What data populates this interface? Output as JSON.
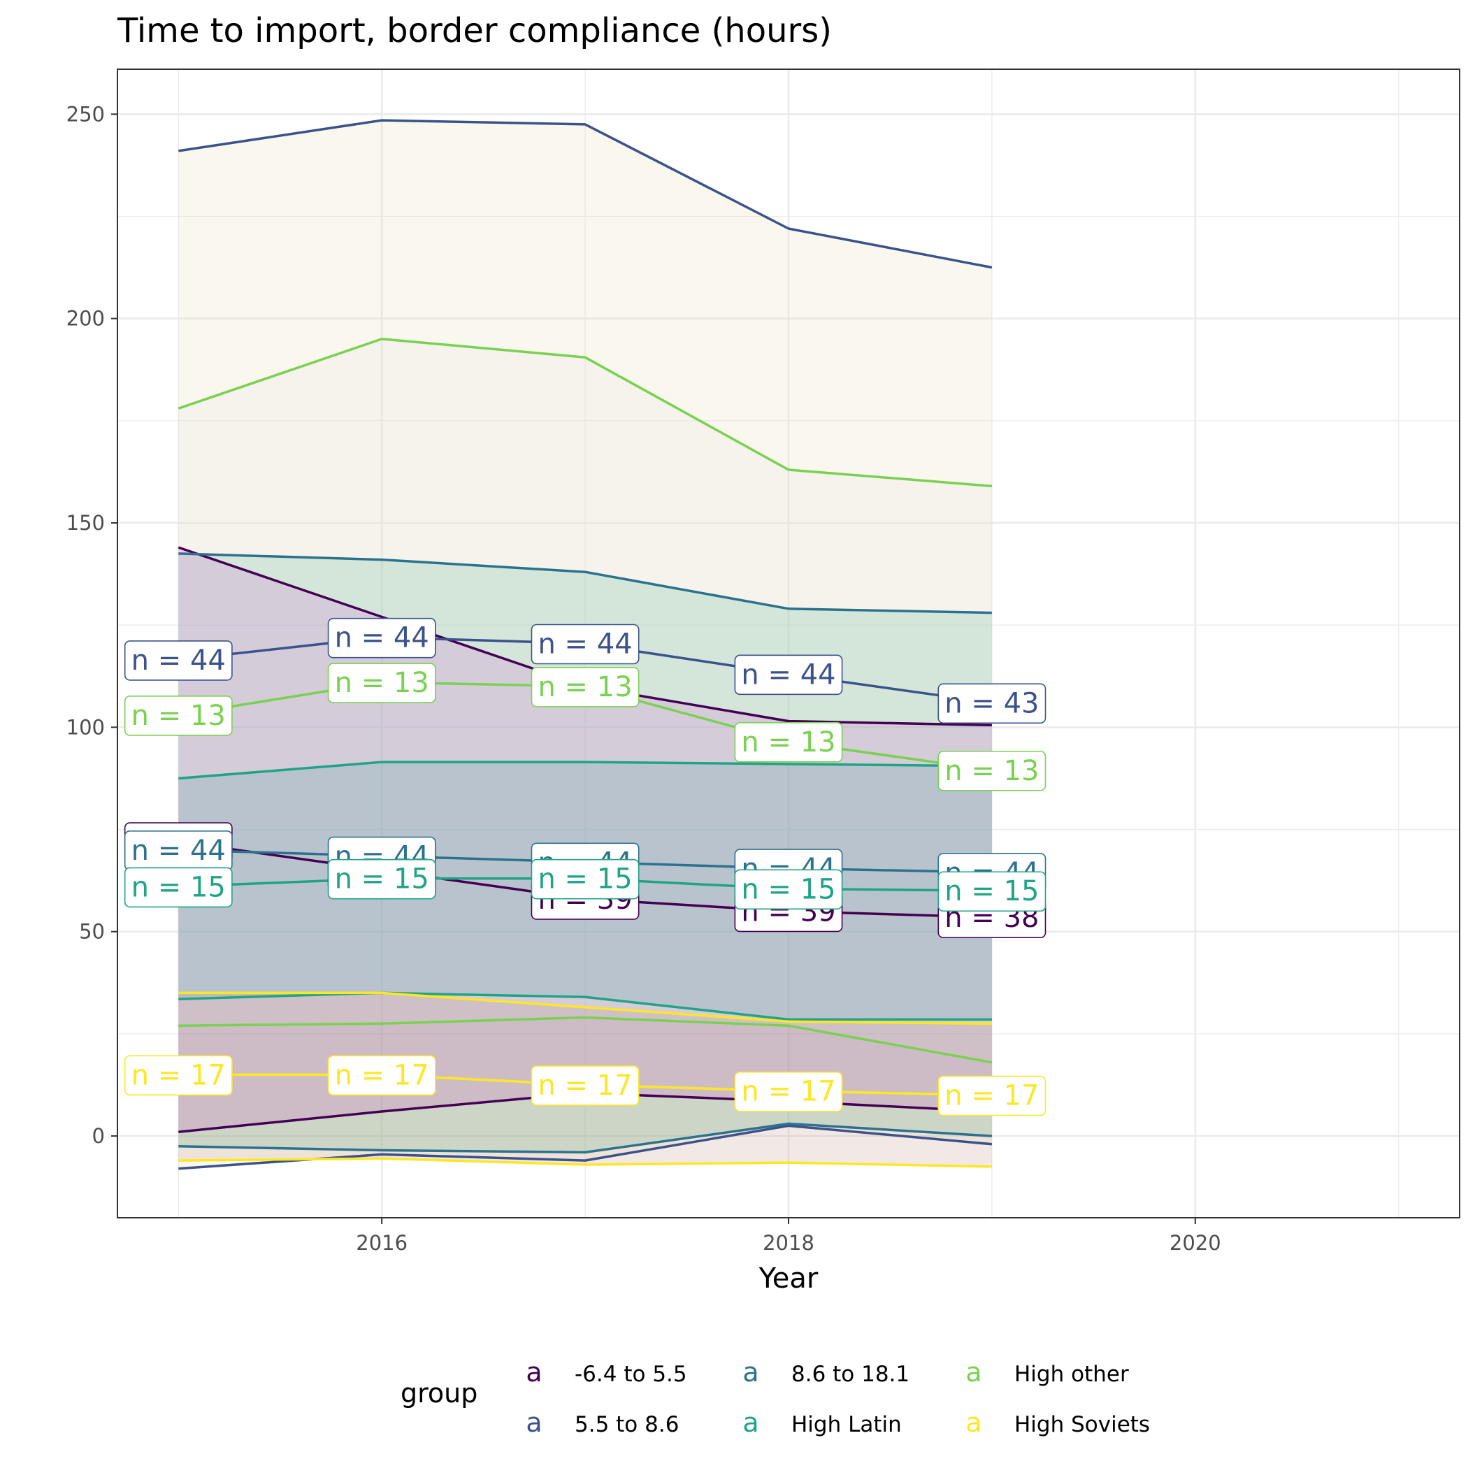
{
  "chart_data": {
    "type": "line",
    "title": "Time to import, border compliance (hours)",
    "xlabel": "Year",
    "ylabel": "",
    "xlim": [
      2014.7,
      2021.3
    ],
    "ylim": [
      -20,
      261
    ],
    "x_ticks": [
      2016,
      2018,
      2020
    ],
    "y_ticks": [
      0,
      50,
      100,
      150,
      200,
      250
    ],
    "grid": true,
    "legend": {
      "title": "group",
      "position": "bottom",
      "key_glyph": "a",
      "entries": [
        "-6.4 to 5.5",
        "5.5 to 8.6",
        "8.6 to 18.1",
        "High Latin",
        "High other",
        "High Soviets"
      ]
    },
    "x": [
      2015,
      2016,
      2017,
      2018,
      2019
    ],
    "series": [
      {
        "name": "-6.4 to 5.5",
        "color": "#440154",
        "ribbon_fill": "#ff00ff",
        "upper": [
          144,
          127,
          110,
          101.5,
          100.5
        ],
        "mean": [
          72,
          65,
          58,
          55,
          53.5
        ],
        "lower": [
          1,
          6,
          10.5,
          8.5,
          6
        ],
        "n_labels": [
          "n = 38",
          "n = 39",
          "n = 39",
          "n = 39",
          "n = 38"
        ]
      },
      {
        "name": "5.5 to 8.6",
        "color": "#3b528b",
        "ribbon_fill": "#e8dcaa",
        "upper": [
          241,
          248.5,
          247.5,
          222,
          212.5
        ],
        "mean": [
          116.5,
          122,
          120.5,
          113,
          106
        ],
        "lower": [
          -8,
          -4.5,
          -6,
          2.5,
          -2
        ],
        "n_labels": [
          "n = 44",
          "n = 44",
          "n = 44",
          "n = 44",
          "n = 43"
        ]
      },
      {
        "name": "8.6 to 18.1",
        "color": "#2c728e",
        "ribbon_fill": "#2ca87e",
        "upper": [
          142.5,
          141,
          138,
          129,
          128
        ],
        "mean": [
          70,
          68.5,
          67,
          65.5,
          64.5
        ],
        "lower": [
          -2.5,
          -3.5,
          -4,
          3,
          0
        ],
        "n_labels": [
          "n = 44",
          "n = 44",
          "n = 44",
          "n = 44",
          "n = 44"
        ]
      },
      {
        "name": "High Latin",
        "color": "#21a386",
        "ribbon_fill": "#21908c",
        "upper": [
          87.5,
          91.5,
          91.5,
          91,
          90.5
        ],
        "mean": [
          61,
          63,
          63,
          60.5,
          60
        ],
        "lower": [
          33.5,
          35,
          34,
          28.5,
          28.5
        ],
        "n_labels": [
          "n = 15",
          "n = 15",
          "n = 15",
          "n = 15",
          "n = 15"
        ]
      },
      {
        "name": "High other",
        "color": "#7ad151",
        "ribbon_fill": "#dfe2e2",
        "upper": [
          178,
          195,
          190.5,
          163,
          159
        ],
        "mean": [
          103,
          111,
          110,
          96.5,
          89.5
        ],
        "lower": [
          27,
          27.5,
          29,
          27,
          18
        ],
        "n_labels": [
          "n = 13",
          "n = 13",
          "n = 13",
          "n = 13",
          "n = 13"
        ]
      },
      {
        "name": "High Soviets",
        "color": "#fde725",
        "ribbon_fill": "#bd9384",
        "upper": [
          35,
          35,
          31.5,
          28,
          27.5
        ],
        "mean": [
          15,
          15,
          12.5,
          11,
          10
        ],
        "lower": [
          -6,
          -5.5,
          -7,
          -6.5,
          -7.5
        ],
        "n_labels": [
          "n = 17",
          "n = 17",
          "n = 17",
          "n = 17",
          "n = 17"
        ]
      }
    ]
  }
}
